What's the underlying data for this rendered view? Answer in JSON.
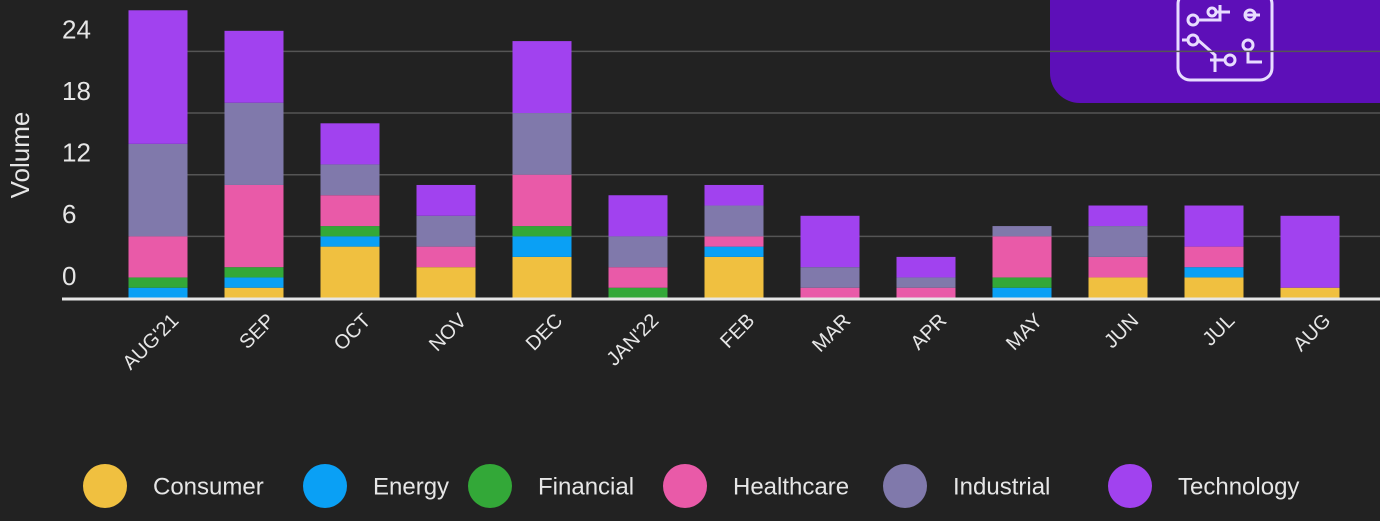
{
  "chart_data": {
    "type": "stacked_bar",
    "y_label": "Volume",
    "categories": [
      "AUG'21",
      "SEP",
      "OCT",
      "NOV",
      "DEC",
      "JAN'22",
      "FEB",
      "MAR",
      "APR",
      "MAY",
      "JUN",
      "JUL",
      "AUG"
    ],
    "series": [
      {
        "name": "Consumer",
        "color": "#f0c040",
        "values": [
          0,
          1,
          5,
          3,
          4,
          0,
          4,
          0,
          0,
          0,
          2,
          2,
          1
        ]
      },
      {
        "name": "Energy",
        "color": "#0aa0f5",
        "values": [
          1,
          1,
          1,
          0,
          2,
          0,
          1,
          0,
          0,
          1,
          0,
          1,
          0
        ]
      },
      {
        "name": "Financial",
        "color": "#33a838",
        "values": [
          1,
          1,
          1,
          0,
          1,
          1,
          0,
          0,
          0,
          1,
          0,
          0,
          0
        ]
      },
      {
        "name": "Healthcare",
        "color": "#e95aa8",
        "values": [
          4,
          8,
          3,
          2,
          5,
          2,
          1,
          1,
          1,
          4,
          2,
          2,
          0
        ]
      },
      {
        "name": "Industrial",
        "color": "#8079ab",
        "values": [
          9,
          8,
          3,
          3,
          6,
          3,
          3,
          2,
          1,
          1,
          3,
          0,
          0
        ]
      },
      {
        "name": "Technology",
        "color": "#a142ef",
        "values": [
          13,
          7,
          4,
          3,
          7,
          4,
          2,
          5,
          2,
          0,
          2,
          4,
          7
        ]
      }
    ],
    "ylim": [
      0,
      29
    ],
    "yticks": [
      0,
      6,
      12,
      18,
      24
    ],
    "grid": true,
    "legend": "bottom"
  }
}
